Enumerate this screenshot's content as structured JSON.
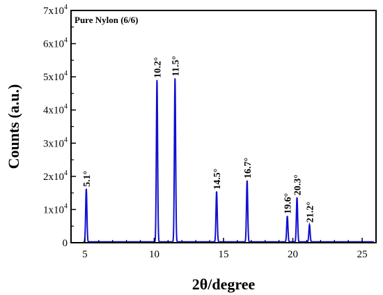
{
  "chart_data": {
    "type": "line",
    "title": "",
    "legend": "Pure Nylon (6/6)",
    "legend_position": "top-left",
    "xlabel": "2θ/degree",
    "ylabel": "Counts (a.u.)",
    "xlim": [
      4,
      26
    ],
    "ylim": [
      0,
      70000
    ],
    "grid": false,
    "x_ticks": [
      5,
      10,
      15,
      20,
      25
    ],
    "x_tick_labels": [
      "5",
      "10",
      "15",
      "20",
      "25"
    ],
    "y_ticks": [
      0,
      10000,
      20000,
      30000,
      40000,
      50000,
      60000,
      70000
    ],
    "y_tick_labels": [
      {
        "mant": "0",
        "exp": ""
      },
      {
        "mant": "1x10",
        "exp": "4"
      },
      {
        "mant": "2x10",
        "exp": "4"
      },
      {
        "mant": "3x10",
        "exp": "4"
      },
      {
        "mant": "4x10",
        "exp": "4"
      },
      {
        "mant": "5x10",
        "exp": "4"
      },
      {
        "mant": "6x10",
        "exp": "4"
      },
      {
        "mant": "7x10",
        "exp": "4"
      }
    ],
    "line_color": "#1010d0",
    "peaks": [
      {
        "x": 5.1,
        "y": 16000,
        "label": "5.1°"
      },
      {
        "x": 10.2,
        "y": 48800,
        "label": "10.2°"
      },
      {
        "x": 11.5,
        "y": 49300,
        "label": "11.5°"
      },
      {
        "x": 14.5,
        "y": 15200,
        "label": "14.5°"
      },
      {
        "x": 16.7,
        "y": 18500,
        "label": "16.7°"
      },
      {
        "x": 19.6,
        "y": 7800,
        "label": "19.6°"
      },
      {
        "x": 20.3,
        "y": 13400,
        "label": "20.3°"
      },
      {
        "x": 21.2,
        "y": 5200,
        "label": "21.2°"
      }
    ]
  }
}
